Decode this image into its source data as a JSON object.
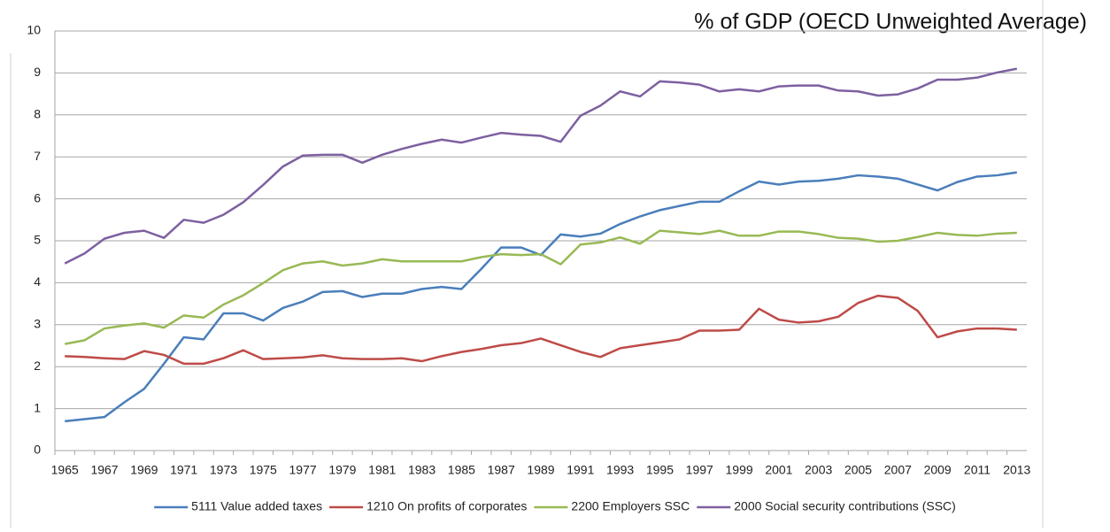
{
  "chart_data": {
    "type": "line",
    "title": "% of GDP (OECD Unweighted Average)",
    "categories": [
      "1965",
      null,
      "1967",
      null,
      "1969",
      null,
      "1971",
      null,
      "1973",
      null,
      "1975",
      null,
      "1977",
      null,
      "1979",
      null,
      "1981",
      null,
      "1983",
      null,
      "1985",
      null,
      "1987",
      null,
      "1989",
      null,
      "1991",
      null,
      "1993",
      null,
      "1995",
      null,
      "1997",
      null,
      "1999",
      null,
      "2001",
      null,
      "2003",
      null,
      "2005",
      null,
      "2007",
      null,
      "2009",
      null,
      "2011",
      null,
      "2013"
    ],
    "series": [
      {
        "name": "5111 Value added taxes",
        "color": "#4a7ebb",
        "values": [
          0.7,
          0.75,
          0.8,
          1.15,
          1.47,
          2.07,
          2.7,
          2.65,
          3.27,
          3.27,
          3.1,
          3.4,
          3.55,
          3.78,
          3.8,
          3.66,
          3.74,
          3.74,
          3.85,
          3.9,
          3.85,
          4.33,
          4.84,
          4.84,
          4.66,
          5.15,
          5.1,
          5.17,
          5.4,
          5.58,
          5.73,
          5.83,
          5.93,
          5.93,
          6.18,
          6.41,
          6.34,
          6.41,
          6.43,
          6.48,
          6.56,
          6.53,
          6.48,
          6.34,
          6.2,
          6.4,
          6.53,
          6.56,
          6.63
        ]
      },
      {
        "name": "1210 On profits of corporates",
        "color": "#be4b48",
        "values": [
          2.25,
          2.23,
          2.2,
          2.18,
          2.37,
          2.28,
          2.07,
          2.07,
          2.2,
          2.39,
          2.18,
          2.2,
          2.22,
          2.27,
          2.2,
          2.18,
          2.18,
          2.2,
          2.13,
          2.25,
          2.35,
          2.42,
          2.51,
          2.56,
          2.67,
          2.51,
          2.35,
          2.23,
          2.44,
          2.51,
          2.58,
          2.65,
          2.86,
          2.86,
          2.88,
          3.38,
          3.12,
          3.05,
          3.08,
          3.19,
          3.52,
          3.69,
          3.64,
          3.33,
          2.7,
          2.84,
          2.91,
          2.91,
          2.88
        ]
      },
      {
        "name": "2200 Employers SSC",
        "color": "#98b954",
        "values": [
          2.54,
          2.63,
          2.91,
          2.98,
          3.03,
          2.93,
          3.22,
          3.17,
          3.48,
          3.7,
          3.99,
          4.3,
          4.46,
          4.51,
          4.41,
          4.46,
          4.56,
          4.51,
          4.51,
          4.51,
          4.51,
          4.61,
          4.68,
          4.66,
          4.68,
          4.44,
          4.91,
          4.96,
          5.08,
          4.93,
          5.24,
          5.2,
          5.16,
          5.24,
          5.12,
          5.12,
          5.22,
          5.22,
          5.16,
          5.07,
          5.05,
          4.98,
          5.0,
          5.09,
          5.19,
          5.14,
          5.12,
          5.17,
          5.19
        ]
      },
      {
        "name": "2000 Social security contributions (SSC)",
        "color": "#7d60a0",
        "values": [
          4.46,
          4.7,
          5.05,
          5.19,
          5.24,
          5.07,
          5.5,
          5.43,
          5.62,
          5.92,
          6.33,
          6.77,
          7.03,
          7.05,
          7.05,
          6.86,
          7.05,
          7.19,
          7.31,
          7.41,
          7.34,
          7.46,
          7.57,
          7.53,
          7.5,
          7.36,
          7.98,
          8.22,
          8.56,
          8.44,
          8.8,
          8.77,
          8.72,
          8.56,
          8.61,
          8.56,
          8.68,
          8.7,
          8.7,
          8.58,
          8.56,
          8.46,
          8.49,
          8.63,
          8.84,
          8.84,
          8.89,
          9.01,
          9.1
        ]
      }
    ],
    "ylim": [
      0,
      10
    ],
    "yticks": [
      0,
      1,
      2,
      3,
      4,
      5,
      6,
      7,
      8,
      9,
      10
    ],
    "grid": true,
    "legend": "bottom"
  }
}
